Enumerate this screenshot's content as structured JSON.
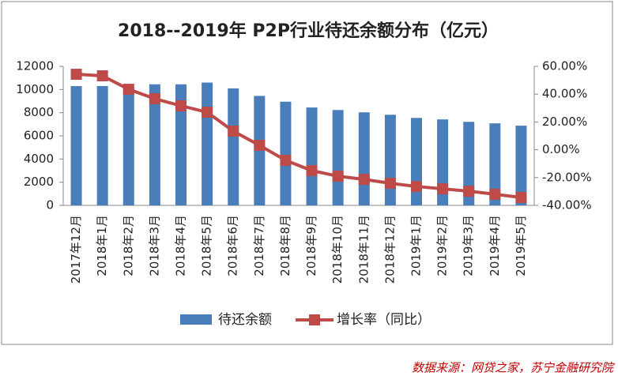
{
  "chart_data": {
    "type": "bar-line",
    "title": "2018--2019年 P2P行业待还余额分布（亿元）",
    "categories": [
      "2017年12月",
      "2018年1月",
      "2018年2月",
      "2018年3月",
      "2018年4月",
      "2018年5月",
      "2018年6月",
      "2018年7月",
      "2018年8月",
      "2018年9月",
      "2018年10月",
      "2018年11月",
      "2018年12月",
      "2019年1月",
      "2019年2月",
      "2019年3月",
      "2019年4月",
      "2019年5月"
    ],
    "series": [
      {
        "name": "待还余额",
        "type": "bar",
        "color": "#4a7ebb",
        "values": [
          10300,
          10300,
          10200,
          10450,
          10450,
          10600,
          10100,
          9450,
          8950,
          8450,
          8230,
          8030,
          7820,
          7550,
          7420,
          7210,
          7080,
          6880
        ]
      },
      {
        "name": "增长率（同比）",
        "type": "line",
        "axis": "y2",
        "color": "#be4b48",
        "values": [
          54.3,
          53.2,
          43.5,
          36.7,
          31.6,
          27.0,
          13.4,
          3.2,
          -7.6,
          -15.0,
          -19.0,
          -21.3,
          -24.1,
          -26.4,
          -28.1,
          -29.8,
          -32.0,
          -34.3
        ]
      }
    ],
    "ylim": [
      0,
      12000
    ],
    "yticks": [
      0,
      2000,
      4000,
      6000,
      8000,
      10000,
      12000
    ],
    "y2lim": [
      -40,
      60
    ],
    "y2ticks": [
      {
        "value": -40,
        "label": "-40.00%"
      },
      {
        "value": -20,
        "label": "-20.00%"
      },
      {
        "value": 0,
        "label": "0.00%"
      },
      {
        "value": 20,
        "label": "20.00%"
      },
      {
        "value": 40,
        "label": "40.00%"
      },
      {
        "value": 60,
        "label": "60.00%"
      }
    ],
    "legend": "bottom",
    "source": "数据来源：网贷之家，苏宁金融研究院"
  }
}
